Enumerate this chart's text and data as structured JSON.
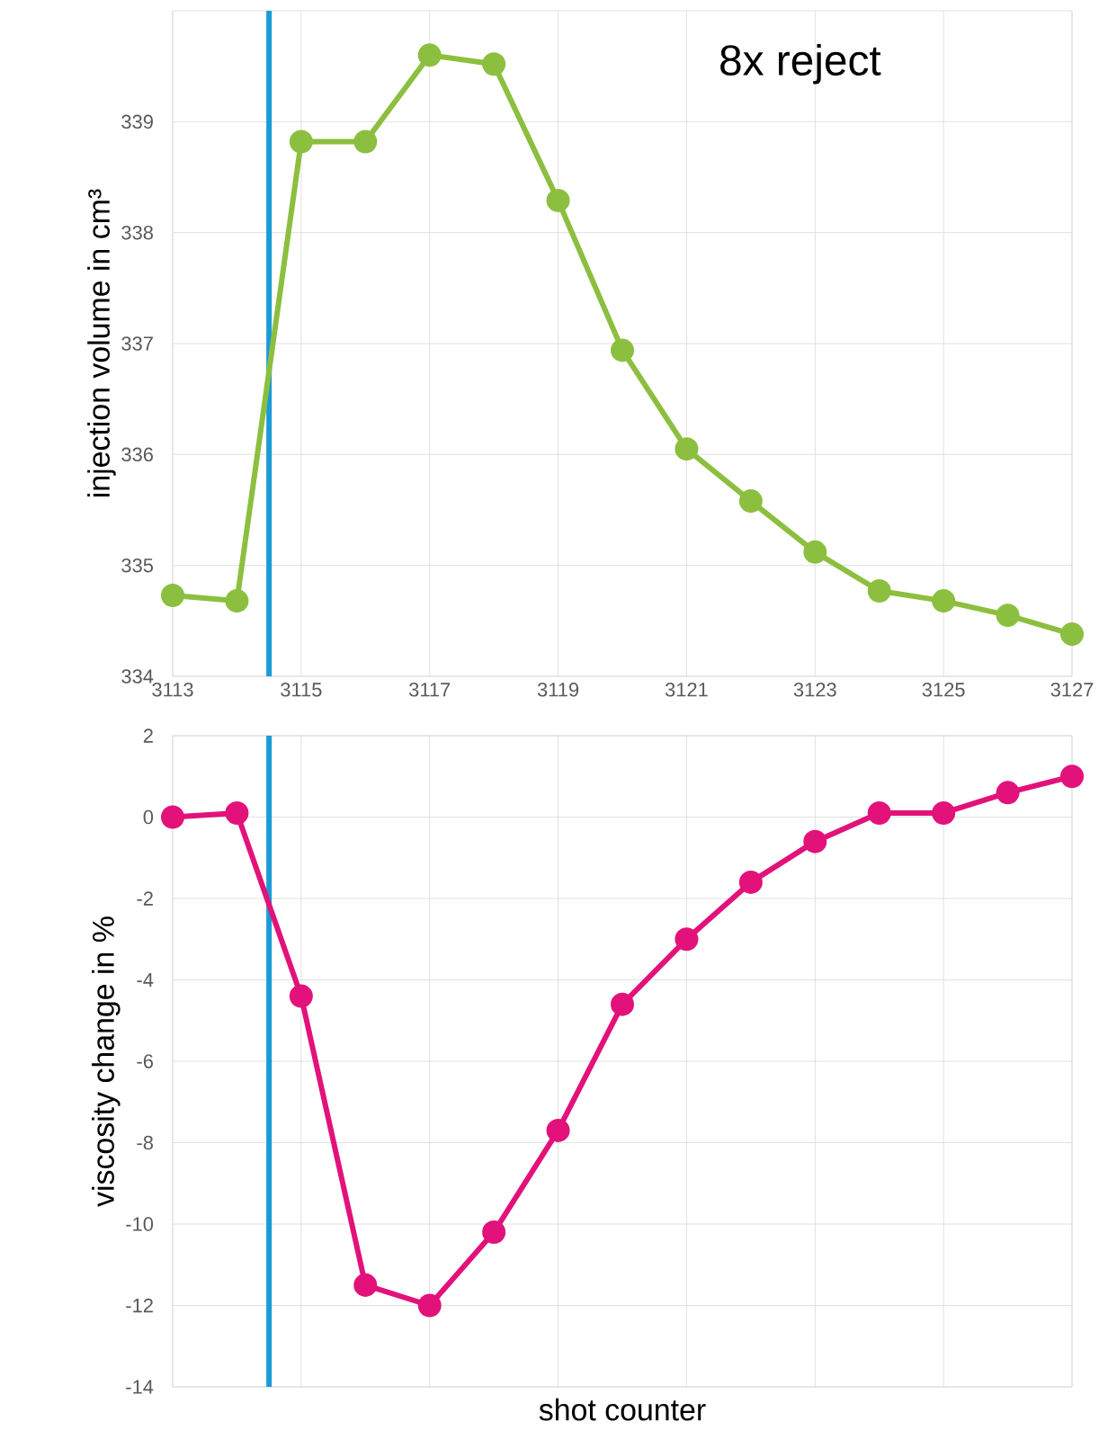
{
  "chart_data": [
    {
      "type": "line",
      "ylabel": "injection volume in cm³",
      "xlim": [
        3113,
        3127
      ],
      "xticks": [
        3113,
        3115,
        3117,
        3119,
        3121,
        3123,
        3125,
        3127
      ],
      "ylim": [
        334,
        340
      ],
      "yticks": [
        334,
        335,
        336,
        337,
        338,
        339
      ],
      "grid": true,
      "marker": "circle",
      "x": [
        3113,
        3114,
        3115,
        3116,
        3117,
        3118,
        3119,
        3120,
        3121,
        3122,
        3123,
        3124,
        3125,
        3126,
        3127
      ],
      "series": [
        {
          "color": "#8cbf3f",
          "values": [
            334.73,
            334.68,
            338.82,
            338.82,
            339.6,
            339.52,
            338.29,
            336.94,
            336.05,
            335.58,
            335.12,
            334.77,
            334.68,
            334.55,
            334.38
          ]
        }
      ],
      "ref_lines": [
        {
          "axis": "x",
          "value": 3114.5,
          "color": "#1a9bd7"
        }
      ],
      "annotations": [
        "8x reject"
      ]
    },
    {
      "type": "line",
      "xlabel": "shot counter",
      "ylabel": "viscosity change in %",
      "xlim": [
        3113,
        3127
      ],
      "xticks": [
        3113,
        3115,
        3117,
        3119,
        3121,
        3123,
        3125,
        3127
      ],
      "ylim": [
        -14,
        2
      ],
      "yticks": [
        -14,
        -12,
        -10,
        -8,
        -6,
        -4,
        -2,
        0,
        2
      ],
      "grid": true,
      "marker": "circle",
      "tick_labels": "y",
      "x": [
        3113,
        3114,
        3115,
        3116,
        3117,
        3118,
        3119,
        3120,
        3121,
        3122,
        3123,
        3124,
        3125,
        3126,
        3127
      ],
      "series": [
        {
          "color": "#e2127a",
          "values": [
            0,
            0.1,
            -4.4,
            -11.5,
            -12.0,
            -10.2,
            -7.7,
            -4.6,
            -3.0,
            -1.6,
            -0.6,
            0.1,
            0.1,
            0.6,
            1.0
          ]
        }
      ],
      "ref_lines": [
        {
          "axis": "x",
          "value": 3114.5,
          "color": "#1a9bd7"
        }
      ]
    }
  ]
}
